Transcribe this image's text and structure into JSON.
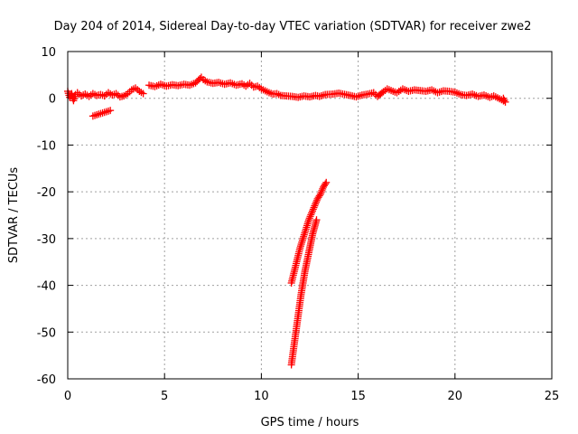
{
  "chart_data": {
    "type": "scatter",
    "title": "Day 204 of 2014, Sidereal Day-to-day VTEC variation (SDTVAR) for receiver zwe2",
    "xlabel": "GPS time / hours",
    "ylabel": "SDTVAR / TECUs",
    "xlim": [
      0,
      25
    ],
    "ylim": [
      -60,
      10
    ],
    "xticks": [
      "0",
      "5",
      "10",
      "15",
      "20",
      "25"
    ],
    "yticks": [
      "10",
      "0",
      "-10",
      "-20",
      "-30",
      "-40",
      "-50",
      "-60"
    ],
    "grid": true,
    "marker": "plus",
    "color": "#ff0000",
    "series": [
      {
        "points": [
          [
            0.0,
            1.5
          ],
          [
            0.1,
            0.2
          ],
          [
            0.2,
            1.0
          ],
          [
            0.3,
            -0.5
          ],
          [
            0.4,
            0.8
          ],
          [
            0.5,
            1.2
          ],
          [
            0.7,
            0.5
          ],
          [
            0.9,
            0.9
          ],
          [
            1.1,
            0.4
          ],
          [
            1.3,
            1.0
          ],
          [
            1.5,
            0.6
          ],
          [
            1.7,
            0.8
          ],
          [
            1.9,
            0.5
          ],
          [
            2.1,
            1.2
          ],
          [
            2.3,
            0.7
          ],
          [
            2.5,
            1.0
          ],
          [
            2.7,
            0.3
          ],
          [
            2.9,
            0.5
          ],
          [
            3.1,
            1.0
          ],
          [
            3.3,
            1.8
          ],
          [
            3.5,
            2.2
          ],
          [
            3.7,
            1.5
          ],
          [
            3.9,
            1.0
          ],
          [
            1.3,
            -3.8
          ],
          [
            1.6,
            -3.4
          ],
          [
            1.9,
            -3.0
          ],
          [
            2.2,
            -2.6
          ],
          [
            4.2,
            2.8
          ],
          [
            4.5,
            2.5
          ],
          [
            4.8,
            3.0
          ],
          [
            5.1,
            2.6
          ],
          [
            5.4,
            2.9
          ],
          [
            5.7,
            2.7
          ],
          [
            6.0,
            3.0
          ],
          [
            6.3,
            2.8
          ],
          [
            6.6,
            3.3
          ],
          [
            6.9,
            4.5
          ],
          [
            7.0,
            4.0
          ],
          [
            7.2,
            3.5
          ],
          [
            7.5,
            3.2
          ],
          [
            7.8,
            3.4
          ],
          [
            8.1,
            3.0
          ],
          [
            8.4,
            3.3
          ],
          [
            8.7,
            2.8
          ],
          [
            9.0,
            3.1
          ],
          [
            9.2,
            2.6
          ],
          [
            9.4,
            3.2
          ],
          [
            9.6,
            2.4
          ],
          [
            9.8,
            2.6
          ],
          [
            10.0,
            2.0
          ],
          [
            10.2,
            1.6
          ],
          [
            10.4,
            1.2
          ],
          [
            10.6,
            0.9
          ],
          [
            10.8,
            1.0
          ],
          [
            11.0,
            0.6
          ],
          [
            11.6,
            0.4
          ],
          [
            11.9,
            0.2
          ],
          [
            12.2,
            0.5
          ],
          [
            12.5,
            0.3
          ],
          [
            12.8,
            0.6
          ],
          [
            13.0,
            0.4
          ],
          [
            13.3,
            0.8
          ],
          [
            13.7,
            0.9
          ],
          [
            14.0,
            1.1
          ],
          [
            14.6,
            0.6
          ],
          [
            14.9,
            0.3
          ],
          [
            15.2,
            0.7
          ],
          [
            15.5,
            0.9
          ],
          [
            15.8,
            1.2
          ],
          [
            16.0,
            0.4
          ],
          [
            16.3,
            1.4
          ],
          [
            16.5,
            2.0
          ],
          [
            16.8,
            1.5
          ],
          [
            17.0,
            1.2
          ],
          [
            17.3,
            2.0
          ],
          [
            17.6,
            1.5
          ],
          [
            17.9,
            1.8
          ],
          [
            18.5,
            1.5
          ],
          [
            18.8,
            1.8
          ],
          [
            19.1,
            1.2
          ],
          [
            19.4,
            1.6
          ],
          [
            19.7,
            1.5
          ],
          [
            20.0,
            1.3
          ],
          [
            20.3,
            0.8
          ],
          [
            20.6,
            0.6
          ],
          [
            20.9,
            0.9
          ],
          [
            21.2,
            0.4
          ],
          [
            21.5,
            0.7
          ],
          [
            21.8,
            0.2
          ],
          [
            22.0,
            0.5
          ],
          [
            22.4,
            -0.3
          ],
          [
            22.6,
            -0.8
          ],
          [
            22.5,
            0.0
          ]
        ]
      },
      {
        "points": [
          [
            11.55,
            -39.5
          ],
          [
            11.7,
            -37.0
          ],
          [
            11.85,
            -34.5
          ],
          [
            12.0,
            -32.0
          ],
          [
            12.15,
            -30.0
          ],
          [
            12.3,
            -28.0
          ],
          [
            12.45,
            -26.0
          ],
          [
            12.6,
            -24.5
          ],
          [
            12.75,
            -23.0
          ],
          [
            12.9,
            -21.5
          ],
          [
            13.05,
            -20.5
          ],
          [
            13.2,
            -19.0
          ],
          [
            13.35,
            -18.0
          ]
        ]
      },
      {
        "points": [
          [
            11.55,
            -57.0
          ],
          [
            11.65,
            -54.0
          ],
          [
            11.75,
            -51.0
          ],
          [
            11.85,
            -48.0
          ],
          [
            11.95,
            -45.0
          ],
          [
            12.05,
            -42.0
          ],
          [
            12.15,
            -39.5
          ],
          [
            12.25,
            -37.0
          ],
          [
            12.35,
            -35.0
          ],
          [
            12.45,
            -33.0
          ],
          [
            12.55,
            -31.0
          ],
          [
            12.65,
            -29.0
          ],
          [
            12.75,
            -27.5
          ],
          [
            12.85,
            -26.0
          ]
        ]
      }
    ]
  }
}
